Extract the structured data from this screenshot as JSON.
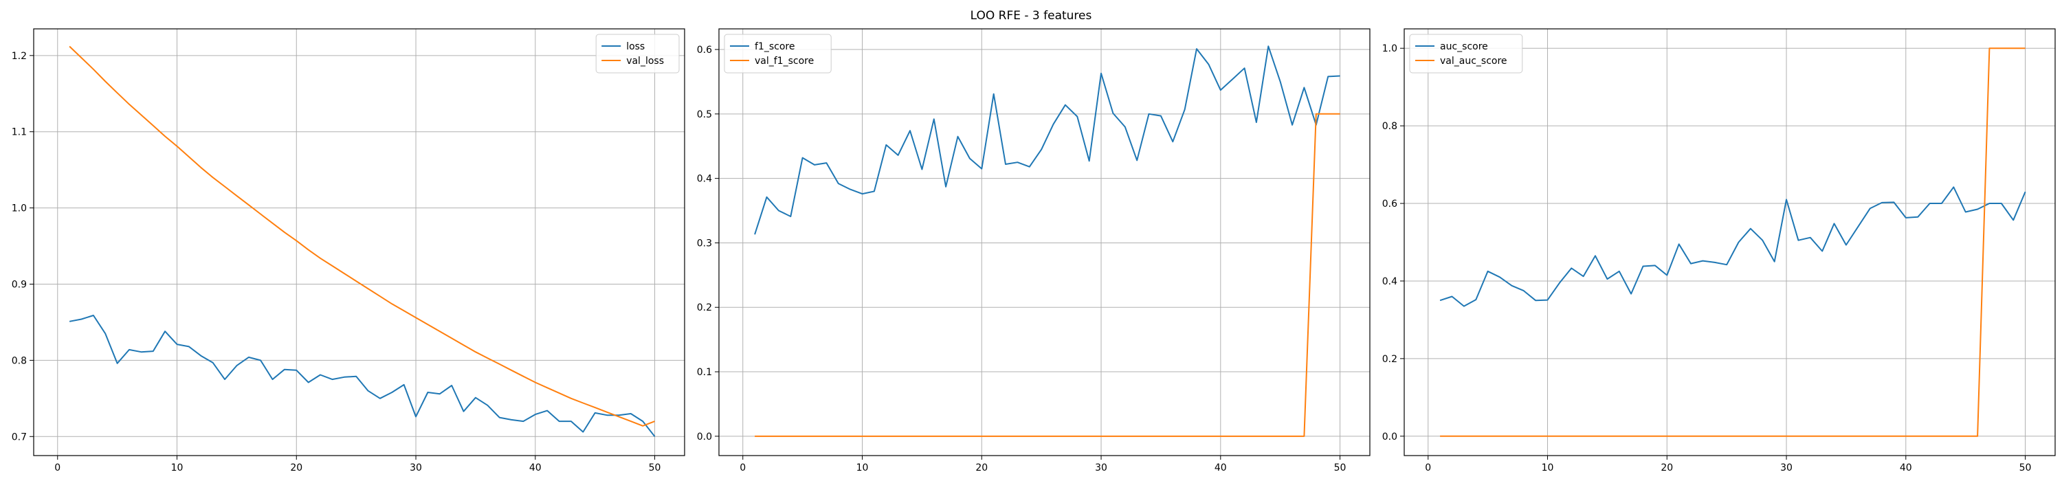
{
  "figure": {
    "suptitle": "LOO RFE - 3 features"
  },
  "colors": {
    "series_1": "#1f77b4",
    "series_2": "#ff7f0e",
    "grid": "#b0b0b0",
    "axes": "#000000"
  },
  "chart_data": [
    {
      "type": "line",
      "xlim": [
        -2,
        52.5
      ],
      "ylim": [
        0.675,
        1.235
      ],
      "xticks": [
        0,
        10,
        20,
        30,
        40,
        50
      ],
      "yticks": [
        0.7,
        0.8,
        0.9,
        1.0,
        1.1,
        1.2
      ],
      "ytick_labels": [
        "0.7",
        "0.8",
        "0.9",
        "1.0",
        "1.1",
        "1.2"
      ],
      "grid": true,
      "legend_position": "top-right",
      "x": [
        1,
        2,
        3,
        4,
        5,
        6,
        7,
        8,
        9,
        10,
        11,
        12,
        13,
        14,
        15,
        16,
        17,
        18,
        19,
        20,
        21,
        22,
        23,
        24,
        25,
        26,
        27,
        28,
        29,
        30,
        31,
        32,
        33,
        34,
        35,
        36,
        37,
        38,
        39,
        40,
        41,
        42,
        43,
        44,
        45,
        46,
        47,
        48,
        49,
        50
      ],
      "series": [
        {
          "name": "loss",
          "values": [
            0.851,
            0.854,
            0.859,
            0.835,
            0.796,
            0.814,
            0.811,
            0.812,
            0.838,
            0.821,
            0.818,
            0.806,
            0.797,
            0.775,
            0.793,
            0.804,
            0.8,
            0.775,
            0.788,
            0.787,
            0.771,
            0.781,
            0.775,
            0.778,
            0.779,
            0.76,
            0.75,
            0.758,
            0.768,
            0.726,
            0.758,
            0.756,
            0.767,
            0.733,
            0.751,
            0.741,
            0.725,
            0.722,
            0.72,
            0.729,
            0.734,
            0.72,
            0.72,
            0.706,
            0.731,
            0.728,
            0.728,
            0.73,
            0.72,
            0.7
          ]
        },
        {
          "name": "val_loss",
          "values": [
            1.212,
            1.197,
            1.182,
            1.166,
            1.151,
            1.136,
            1.122,
            1.108,
            1.094,
            1.081,
            1.067,
            1.053,
            1.04,
            1.028,
            1.016,
            1.004,
            0.992,
            0.98,
            0.968,
            0.957,
            0.945,
            0.934,
            0.924,
            0.914,
            0.904,
            0.894,
            0.884,
            0.874,
            0.865,
            0.856,
            0.847,
            0.838,
            0.829,
            0.82,
            0.811,
            0.803,
            0.795,
            0.787,
            0.779,
            0.771,
            0.764,
            0.757,
            0.75,
            0.744,
            0.738,
            0.732,
            0.726,
            0.72,
            0.714,
            0.72
          ]
        }
      ]
    },
    {
      "type": "line",
      "xlim": [
        -2,
        52.5
      ],
      "ylim": [
        -0.03,
        0.632
      ],
      "xticks": [
        0,
        10,
        20,
        30,
        40,
        50
      ],
      "yticks": [
        0.0,
        0.1,
        0.2,
        0.3,
        0.4,
        0.5,
        0.6
      ],
      "ytick_labels": [
        "0.0",
        "0.1",
        "0.2",
        "0.3",
        "0.4",
        "0.5",
        "0.6"
      ],
      "grid": true,
      "legend_position": "top-left",
      "x": [
        1,
        2,
        3,
        4,
        5,
        6,
        7,
        8,
        9,
        10,
        11,
        12,
        13,
        14,
        15,
        16,
        17,
        18,
        19,
        20,
        21,
        22,
        23,
        24,
        25,
        26,
        27,
        28,
        29,
        30,
        31,
        32,
        33,
        34,
        35,
        36,
        37,
        38,
        39,
        40,
        41,
        42,
        43,
        44,
        45,
        46,
        47,
        48,
        49,
        50
      ],
      "series": [
        {
          "name": "f1_score",
          "values": [
            0.313,
            0.371,
            0.35,
            0.341,
            0.432,
            0.421,
            0.424,
            0.392,
            0.383,
            0.376,
            0.38,
            0.452,
            0.436,
            0.474,
            0.414,
            0.492,
            0.387,
            0.465,
            0.431,
            0.415,
            0.531,
            0.422,
            0.425,
            0.418,
            0.445,
            0.484,
            0.514,
            0.496,
            0.427,
            0.563,
            0.501,
            0.48,
            0.428,
            0.5,
            0.497,
            0.457,
            0.507,
            0.601,
            0.577,
            0.537,
            0.554,
            0.571,
            0.487,
            0.605,
            0.55,
            0.483,
            0.541,
            0.483,
            0.558,
            0.559
          ]
        },
        {
          "name": "val_f1_score",
          "values": [
            0,
            0,
            0,
            0,
            0,
            0,
            0,
            0,
            0,
            0,
            0,
            0,
            0,
            0,
            0,
            0,
            0,
            0,
            0,
            0,
            0,
            0,
            0,
            0,
            0,
            0,
            0,
            0,
            0,
            0,
            0,
            0,
            0,
            0,
            0,
            0,
            0,
            0,
            0,
            0,
            0,
            0,
            0,
            0,
            0,
            0,
            0,
            0.5,
            0.5,
            0.5
          ]
        }
      ]
    },
    {
      "type": "line",
      "xlim": [
        -2,
        52.5
      ],
      "ylim": [
        -0.05,
        1.05
      ],
      "xticks": [
        0,
        10,
        20,
        30,
        40,
        50
      ],
      "yticks": [
        0.0,
        0.2,
        0.4,
        0.6,
        0.8,
        1.0
      ],
      "ytick_labels": [
        "0.0",
        "0.2",
        "0.4",
        "0.6",
        "0.8",
        "1.0"
      ],
      "grid": true,
      "legend_position": "top-left",
      "x": [
        1,
        2,
        3,
        4,
        5,
        6,
        7,
        8,
        9,
        10,
        11,
        12,
        13,
        14,
        15,
        16,
        17,
        18,
        19,
        20,
        21,
        22,
        23,
        24,
        25,
        26,
        27,
        28,
        29,
        30,
        31,
        32,
        33,
        34,
        35,
        36,
        37,
        38,
        39,
        40,
        41,
        42,
        43,
        44,
        45,
        46,
        47,
        48,
        49,
        50
      ],
      "series": [
        {
          "name": "auc_score",
          "values": [
            0.35,
            0.36,
            0.335,
            0.352,
            0.425,
            0.41,
            0.388,
            0.375,
            0.35,
            0.351,
            0.395,
            0.433,
            0.412,
            0.465,
            0.405,
            0.425,
            0.367,
            0.438,
            0.44,
            0.415,
            0.495,
            0.445,
            0.452,
            0.448,
            0.442,
            0.5,
            0.535,
            0.505,
            0.45,
            0.61,
            0.505,
            0.512,
            0.477,
            0.548,
            0.493,
            0.54,
            0.587,
            0.602,
            0.603,
            0.563,
            0.565,
            0.6,
            0.6,
            0.642,
            0.578,
            0.585,
            0.6,
            0.6,
            0.557,
            0.63
          ]
        },
        {
          "name": "val_auc_score",
          "values": [
            0,
            0,
            0,
            0,
            0,
            0,
            0,
            0,
            0,
            0,
            0,
            0,
            0,
            0,
            0,
            0,
            0,
            0,
            0,
            0,
            0,
            0,
            0,
            0,
            0,
            0,
            0,
            0,
            0,
            0,
            0,
            0,
            0,
            0,
            0,
            0,
            0,
            0,
            0,
            0,
            0,
            0,
            0,
            0,
            0,
            0,
            1,
            1,
            1,
            1
          ]
        }
      ]
    }
  ]
}
